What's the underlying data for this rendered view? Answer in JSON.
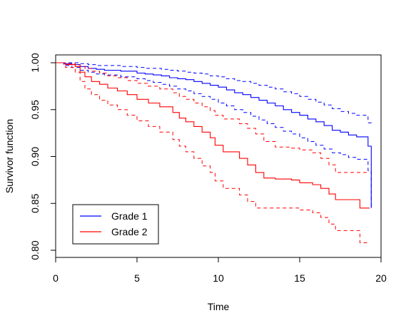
{
  "chart_data": {
    "type": "line",
    "chart_style": "step",
    "xlabel": "Time",
    "ylabel": "Survivor function",
    "xlim": [
      0,
      20
    ],
    "ylim": [
      0.8,
      1.0
    ],
    "x_ticks": [
      "0",
      "5",
      "10",
      "15",
      "20"
    ],
    "y_ticks": [
      "0.80",
      "0.85",
      "0.90",
      "0.95",
      "1.00"
    ],
    "grid": false,
    "legend_position": "bottom-left",
    "series": [
      {
        "name": "Grade 1",
        "color": "#0000FF",
        "estimate": {
          "x": [
            0,
            0.5,
            1,
            1.5,
            2,
            2.5,
            3,
            4,
            5,
            5.5,
            6,
            6.5,
            7,
            7.5,
            8,
            8.5,
            9,
            9.5,
            10,
            10.5,
            11,
            11.5,
            12,
            12.5,
            13,
            13.5,
            14,
            14.5,
            15,
            15.5,
            16,
            16.5,
            17,
            17.5,
            18,
            18.5,
            19.2,
            19.4
          ],
          "y": [
            1.0,
            0.999,
            0.998,
            0.996,
            0.994,
            0.993,
            0.992,
            0.991,
            0.989,
            0.988,
            0.987,
            0.986,
            0.984,
            0.983,
            0.982,
            0.98,
            0.978,
            0.976,
            0.974,
            0.971,
            0.968,
            0.966,
            0.963,
            0.96,
            0.957,
            0.954,
            0.95,
            0.947,
            0.944,
            0.94,
            0.937,
            0.933,
            0.928,
            0.926,
            0.923,
            0.921,
            0.911,
            0.845
          ]
        },
        "lower_ci": {
          "x": [
            0,
            0.5,
            1,
            1.5,
            2,
            2.5,
            3,
            4,
            5,
            5.5,
            6,
            6.5,
            7,
            7.5,
            8,
            8.5,
            9,
            9.5,
            10,
            10.5,
            11,
            11.5,
            12,
            12.5,
            13,
            13.5,
            14,
            14.5,
            15,
            15.5,
            16,
            16.5,
            17,
            17.5,
            18,
            18.5,
            19.2,
            19.4
          ],
          "y": [
            1.0,
            0.997,
            0.995,
            0.992,
            0.99,
            0.988,
            0.987,
            0.985,
            0.983,
            0.981,
            0.979,
            0.977,
            0.975,
            0.972,
            0.97,
            0.967,
            0.964,
            0.961,
            0.957,
            0.954,
            0.95,
            0.947,
            0.943,
            0.939,
            0.935,
            0.931,
            0.927,
            0.924,
            0.92,
            0.916,
            0.912,
            0.908,
            0.904,
            0.902,
            0.899,
            0.897,
            0.885,
            0.845
          ]
        },
        "upper_ci": {
          "x": [
            0,
            0.5,
            1,
            1.5,
            2,
            2.5,
            3,
            4,
            5,
            5.5,
            6,
            6.5,
            7,
            7.5,
            8,
            8.5,
            9,
            9.5,
            10,
            10.5,
            11,
            11.5,
            12,
            12.5,
            13,
            13.5,
            14,
            14.5,
            15,
            15.5,
            16,
            16.5,
            17,
            17.5,
            18,
            18.5,
            19.2,
            19.4
          ],
          "y": [
            1.0,
            1.0,
            1.0,
            0.999,
            0.998,
            0.997,
            0.997,
            0.996,
            0.995,
            0.994,
            0.994,
            0.993,
            0.992,
            0.991,
            0.99,
            0.989,
            0.988,
            0.986,
            0.985,
            0.983,
            0.981,
            0.98,
            0.978,
            0.976,
            0.974,
            0.972,
            0.969,
            0.967,
            0.964,
            0.961,
            0.958,
            0.955,
            0.951,
            0.948,
            0.946,
            0.944,
            0.936,
            0.939
          ]
        }
      },
      {
        "name": "Grade 2",
        "color": "#FF0000",
        "estimate": {
          "x": [
            0,
            0.6,
            1.2,
            1.5,
            1.8,
            2.2,
            2.7,
            3.2,
            3.8,
            4.4,
            5.0,
            5.7,
            6.4,
            7.2,
            7.6,
            8.0,
            8.5,
            9.0,
            9.5,
            9.8,
            10.3,
            11.3,
            11.8,
            12.3,
            12.8,
            13.5,
            14.5,
            15.0,
            15.8,
            16.3,
            16.8,
            17.2,
            18.7,
            19.3
          ],
          "y": [
            1.0,
            0.998,
            0.996,
            0.99,
            0.985,
            0.98,
            0.977,
            0.973,
            0.97,
            0.966,
            0.961,
            0.957,
            0.953,
            0.947,
            0.941,
            0.937,
            0.932,
            0.926,
            0.92,
            0.912,
            0.905,
            0.898,
            0.891,
            0.883,
            0.877,
            0.876,
            0.875,
            0.872,
            0.87,
            0.866,
            0.86,
            0.854,
            0.845,
            0.845
          ]
        },
        "lower_ci": {
          "x": [
            0,
            0.6,
            1.2,
            1.5,
            1.8,
            2.2,
            2.7,
            3.2,
            3.8,
            4.4,
            5.0,
            5.7,
            6.4,
            7.2,
            7.6,
            8.0,
            8.5,
            9.0,
            9.5,
            9.8,
            10.3,
            11.3,
            11.8,
            12.3,
            12.8,
            13.5,
            14.5,
            15.0,
            15.8,
            16.3,
            16.8,
            17.2,
            18.7,
            19.3
          ],
          "y": [
            1.0,
            0.995,
            0.99,
            0.98,
            0.972,
            0.966,
            0.96,
            0.955,
            0.95,
            0.944,
            0.938,
            0.932,
            0.926,
            0.918,
            0.911,
            0.905,
            0.898,
            0.89,
            0.883,
            0.874,
            0.866,
            0.859,
            0.852,
            0.845,
            0.845,
            0.845,
            0.845,
            0.843,
            0.84,
            0.835,
            0.828,
            0.821,
            0.808,
            0.808
          ]
        },
        "upper_ci": {
          "x": [
            0,
            0.6,
            1.2,
            1.5,
            1.8,
            2.2,
            2.7,
            3.2,
            3.8,
            4.4,
            5.0,
            5.7,
            6.4,
            7.2,
            7.6,
            8.0,
            8.5,
            9.0,
            9.5,
            9.8,
            10.3,
            11.3,
            11.8,
            12.3,
            12.8,
            13.5,
            14.5,
            15.0,
            15.8,
            16.3,
            16.8,
            17.2,
            18.7,
            19.3
          ],
          "y": [
            1.0,
            0.999,
            0.998,
            0.996,
            0.994,
            0.991,
            0.989,
            0.986,
            0.984,
            0.981,
            0.978,
            0.975,
            0.972,
            0.968,
            0.964,
            0.961,
            0.957,
            0.953,
            0.949,
            0.944,
            0.94,
            0.935,
            0.93,
            0.924,
            0.916,
            0.91,
            0.909,
            0.907,
            0.904,
            0.898,
            0.891,
            0.883,
            0.883,
            0.883
          ]
        }
      }
    ]
  }
}
